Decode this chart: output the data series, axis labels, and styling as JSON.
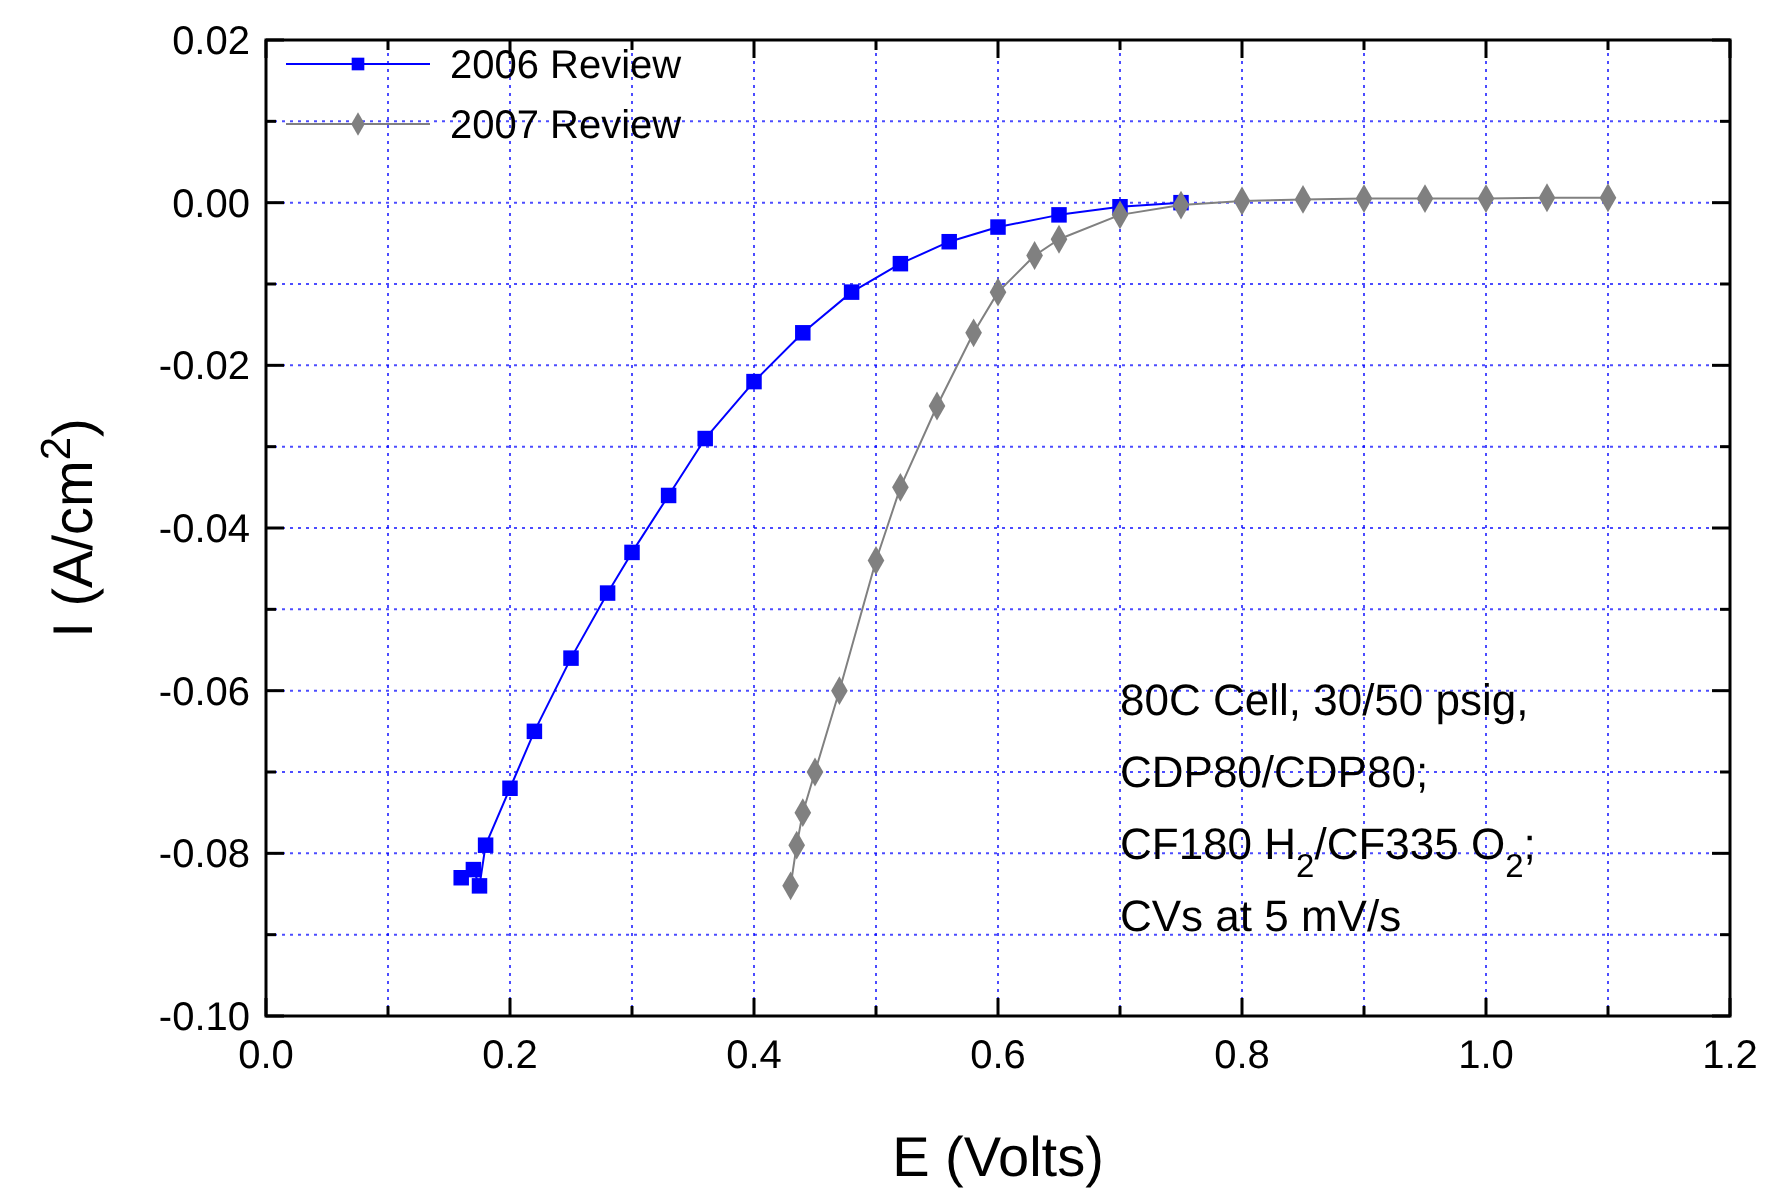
{
  "chart_data": {
    "type": "line",
    "xlabel": "E (Volts)",
    "ylabel": "I (A/cm$^{2}$)",
    "xlim": [
      0,
      1.2
    ],
    "ylim": [
      -0.1,
      0.02
    ],
    "xticks": [
      {
        "value": 0,
        "label": "0.0"
      },
      {
        "value": 0.1,
        "label": null
      },
      {
        "value": 0.2,
        "label": "0.2"
      },
      {
        "value": 0.3,
        "label": null
      },
      {
        "value": 0.4,
        "label": "0.4"
      },
      {
        "value": 0.5,
        "label": null
      },
      {
        "value": 0.6,
        "label": "0.6"
      },
      {
        "value": 0.7,
        "label": null
      },
      {
        "value": 0.8,
        "label": "0.8"
      },
      {
        "value": 0.9,
        "label": null
      },
      {
        "value": 1,
        "label": "1.0"
      },
      {
        "value": 1.1,
        "label": null
      },
      {
        "value": 1.2,
        "label": "1.2"
      }
    ],
    "yticks": [
      {
        "value": -0.1,
        "label": "-0.10"
      },
      {
        "value": -0.09,
        "label": null
      },
      {
        "value": -0.08,
        "label": "-0.08"
      },
      {
        "value": -0.07,
        "label": null
      },
      {
        "value": -0.06,
        "label": "-0.06"
      },
      {
        "value": -0.05,
        "label": null
      },
      {
        "value": -0.04,
        "label": "-0.04"
      },
      {
        "value": -0.03,
        "label": null
      },
      {
        "value": -0.02,
        "label": "-0.02"
      },
      {
        "value": -0.01,
        "label": null
      },
      {
        "value": 0,
        "label": "0.00"
      },
      {
        "value": 0.01,
        "label": null
      },
      {
        "value": 0.02,
        "label": "0.02"
      }
    ],
    "grid": true,
    "legend": "top left",
    "line_style": "solid",
    "annotations": [
      "80C Cell, 30/50 psig,",
      "CDP80/CDP80;",
      "CF180 H$_{2}$/CF335 O$_{2}$;",
      "CVs at 5 mV/s"
    ],
    "series": [
      {
        "name": "2006 Review",
        "color": "#0000ff",
        "marker": "square",
        "x": [
          0.16,
          0.17,
          0.175,
          0.18,
          0.2,
          0.22,
          0.25,
          0.28,
          0.3,
          0.33,
          0.36,
          0.4,
          0.44,
          0.48,
          0.52,
          0.56,
          0.6,
          0.65,
          0.7,
          0.75
        ],
        "values": [
          -0.083,
          -0.082,
          -0.084,
          -0.079,
          -0.072,
          -0.065,
          -0.056,
          -0.048,
          -0.043,
          -0.036,
          -0.029,
          -0.022,
          -0.016,
          -0.011,
          -0.0075,
          -0.0048,
          -0.003,
          -0.0015,
          -0.0005,
          0
        ]
      },
      {
        "name": "2007 Review",
        "color": "#808080",
        "marker": "diamond",
        "x": [
          0.43,
          0.435,
          0.44,
          0.45,
          0.47,
          0.5,
          0.52,
          0.55,
          0.58,
          0.6,
          0.63,
          0.65,
          0.7,
          0.75,
          0.8,
          0.85,
          0.9,
          0.95,
          1.0,
          1.05,
          1.1
        ],
        "values": [
          -0.084,
          -0.079,
          -0.075,
          -0.07,
          -0.06,
          -0.044,
          -0.035,
          -0.025,
          -0.016,
          -0.011,
          -0.0065,
          -0.0045,
          -0.0015,
          -0.0003,
          0.0002,
          0.0004,
          0.0005,
          0.0005,
          0.0005,
          0.0006,
          0.0006
        ]
      }
    ]
  }
}
